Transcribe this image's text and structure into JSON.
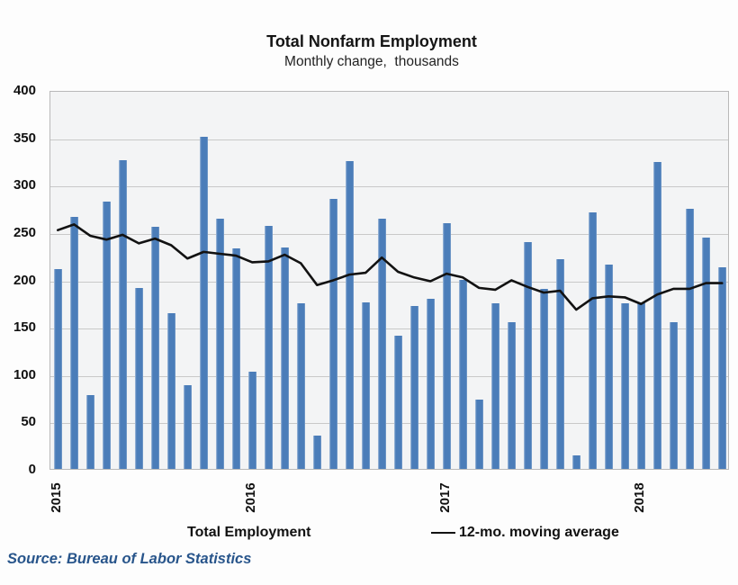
{
  "chart_data": {
    "type": "bar",
    "title": "Total Nonfarm Employment",
    "subtitle": "Monthly change,  thousands",
    "categories": [
      "Jan 2015",
      "Feb 2015",
      "Mar 2015",
      "Apr 2015",
      "May 2015",
      "Jun 2015",
      "Jul 2015",
      "Aug 2015",
      "Sep 2015",
      "Oct 2015",
      "Nov 2015",
      "Dec 2015",
      "Jan 2016",
      "Feb 2016",
      "Mar 2016",
      "Apr 2016",
      "May 2016",
      "Jun 2016",
      "Jul 2016",
      "Aug 2016",
      "Sep 2016",
      "Oct 2016",
      "Nov 2016",
      "Dec 2016",
      "Jan 2017",
      "Feb 2017",
      "Mar 2017",
      "Apr 2017",
      "May 2017",
      "Jun 2017",
      "Jul 2017",
      "Aug 2017",
      "Sep 2017",
      "Oct 2017",
      "Nov 2017",
      "Dec 2017",
      "Jan 2018",
      "Feb 2018",
      "Mar 2018",
      "Apr 2018",
      "May 2018",
      "Jun 2018"
    ],
    "series": [
      {
        "name": "Total Employment",
        "type": "bar",
        "color": "#4b7db9",
        "values": [
          211,
          266,
          78,
          282,
          326,
          191,
          256,
          164,
          88,
          351,
          264,
          233,
          103,
          257,
          234,
          175,
          35,
          285,
          325,
          176,
          264,
          141,
          172,
          180,
          259,
          200,
          73,
          175,
          155,
          239,
          190,
          221,
          14,
          271,
          216,
          175,
          176,
          324,
          155,
          275,
          244,
          213
        ]
      },
      {
        "name": "12-mo. moving average",
        "type": "line",
        "color": "#121212",
        "values": [
          254,
          260,
          248,
          244,
          249,
          240,
          245,
          238,
          224,
          231,
          229,
          227,
          220,
          221,
          228,
          219,
          196,
          201,
          207,
          209,
          225,
          210,
          204,
          200,
          208,
          204,
          193,
          191,
          201,
          194,
          188,
          190,
          170,
          182,
          184,
          183,
          176,
          186,
          192,
          192,
          198,
          198
        ]
      }
    ],
    "ylim": [
      0,
      400
    ],
    "yticks": [
      400,
      350,
      300,
      250,
      200,
      150,
      100,
      50,
      0
    ],
    "x_tick_labels": [
      {
        "label": "2015",
        "month_index": 0
      },
      {
        "label": "2016",
        "month_index": 12
      },
      {
        "label": "2017",
        "month_index": 24
      },
      {
        "label": "2018",
        "month_index": 36
      }
    ],
    "grid": "horizontal",
    "legend_position": "bottom"
  },
  "source": {
    "text": "Source: Bureau of Labor Statistics"
  },
  "colors": {
    "bar": "#4b7db9",
    "line": "#121212",
    "plot_background": "#f3f4f5",
    "gridline": "#c9c9c9",
    "source_text": "#28558b"
  }
}
